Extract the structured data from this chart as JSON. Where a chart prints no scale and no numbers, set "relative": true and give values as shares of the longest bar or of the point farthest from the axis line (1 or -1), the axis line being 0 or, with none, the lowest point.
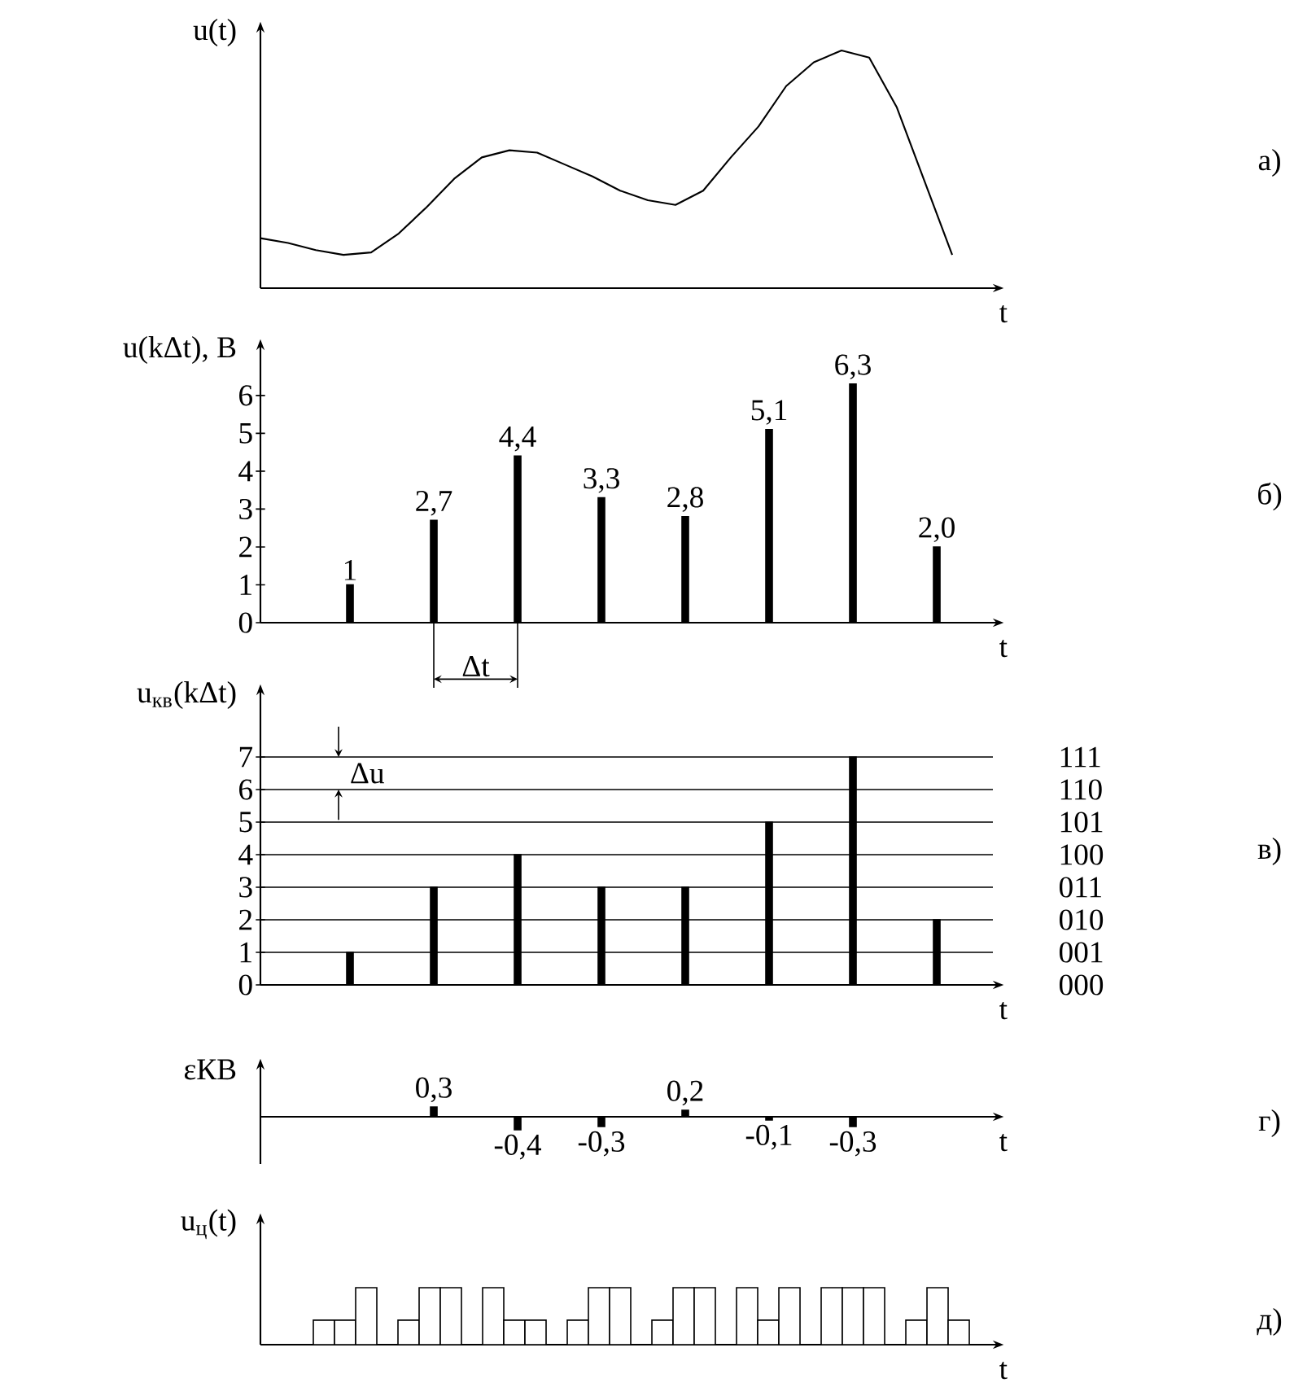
{
  "chart_data": [
    {
      "type": "line",
      "annotations": [
        "а)"
      ],
      "ylabel": "u(t)",
      "xlabel": "t",
      "relative": true,
      "color": "#000000",
      "categories": [
        null,
        null,
        null,
        null,
        null,
        null,
        null,
        null,
        null,
        null,
        null,
        null,
        null,
        null,
        null,
        null,
        null,
        null,
        null,
        null,
        null,
        null,
        null,
        null,
        null,
        null
      ],
      "values": [
        0.21,
        0.19,
        0.16,
        0.14,
        0.15,
        0.23,
        0.34,
        0.46,
        0.55,
        0.58,
        0.57,
        0.52,
        0.47,
        0.41,
        0.37,
        0.35,
        0.41,
        0.55,
        0.68,
        0.85,
        0.95,
        1,
        0.97,
        0.76,
        0.45,
        0.14
      ]
    },
    {
      "type": "bar",
      "ylabel": "u(kΔt), В",
      "xlabel": "t",
      "color": "#000000",
      "categories": [
        null,
        null,
        null,
        null,
        null,
        null,
        null,
        null
      ],
      "values": [
        1,
        2.7,
        4.4,
        3.3,
        2.8,
        5.1,
        6.3,
        2.0
      ],
      "value_labels": [
        "1",
        "2,7",
        "4,4",
        "3,3",
        "2,8",
        "5,1",
        "6,3",
        "2,0"
      ],
      "ylim": [
        0,
        7.2
      ],
      "yticks": [
        0,
        1,
        2,
        3,
        4,
        5,
        6
      ],
      "annotations": [
        "б)",
        "Δt"
      ]
    },
    {
      "type": "bar",
      "ylabel": "u$_{кв}$(kΔt)",
      "xlabel": "t",
      "color": "#000000",
      "categories": [
        null,
        null,
        null,
        null,
        null,
        null,
        null,
        null
      ],
      "values": [
        1,
        3,
        4,
        3,
        3,
        5,
        7,
        2
      ],
      "ylim": [
        0,
        8.9
      ],
      "yticks": [
        0,
        1,
        2,
        3,
        4,
        5,
        6,
        7
      ],
      "grid": "y",
      "annotations": [
        "в)",
        "Δu",
        "000",
        "001",
        "010",
        "011",
        "100",
        "101",
        "110",
        "111"
      ]
    },
    {
      "type": "bar",
      "ylabel": "εКВ",
      "xlabel": "t",
      "color": "#000000",
      "categories": [
        null,
        null,
        null,
        null,
        null,
        null,
        null,
        null
      ],
      "values": [
        0,
        0.3,
        -0.4,
        -0.3,
        0.2,
        -0.1,
        -0.3,
        0
      ],
      "value_labels": [
        null,
        "0,3",
        "-0,4",
        "-0,3",
        "0,2",
        "-0,1",
        "-0,3",
        null
      ],
      "annotations": [
        "г)"
      ]
    },
    {
      "type": "bar",
      "ylabel": "u$_{ц}$(t)",
      "xlabel": "t",
      "relative": true,
      "categories": [
        null,
        null,
        null,
        null,
        null,
        null,
        null,
        null
      ],
      "annotations": [
        "д)"
      ],
      "series": [
        {
          "color": "#ffffff",
          "values": [
            0.43,
            0.43,
            1,
            0.43,
            0.43,
            1,
            1,
            0.43
          ]
        },
        {
          "color": "#ffffff",
          "values": [
            0.43,
            1,
            0.43,
            1,
            1,
            0.43,
            1,
            1
          ]
        },
        {
          "color": "#ffffff",
          "values": [
            1,
            1,
            0.43,
            1,
            1,
            1,
            1,
            0.43
          ]
        }
      ]
    }
  ]
}
